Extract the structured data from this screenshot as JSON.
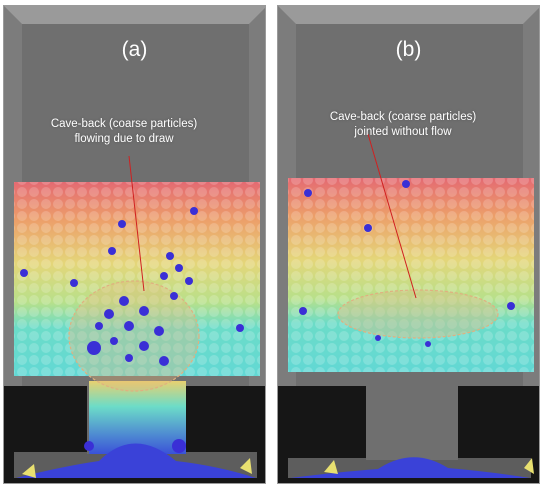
{
  "figure": {
    "panels": [
      {
        "label": "(a)",
        "annotation_line1": "Cave-back (coarse particles)",
        "annotation_line2": "flowing due to draw"
      },
      {
        "label": "(b)",
        "annotation_line1": "Cave-back (coarse particles)",
        "annotation_line2": "jointed without flow"
      }
    ],
    "colors": {
      "chamber_gray": "#6f6f6f",
      "frame_light": "#8c8c8c",
      "dark_void": "#161616",
      "band_red": "#e46a72",
      "band_orange": "#eca06a",
      "band_yellow": "#e4d67a",
      "band_green": "#b8e08a",
      "band_cyan": "#6cdcc8",
      "coarse_blue": "#3a2fd6",
      "annotation_line": "#d02020"
    }
  }
}
